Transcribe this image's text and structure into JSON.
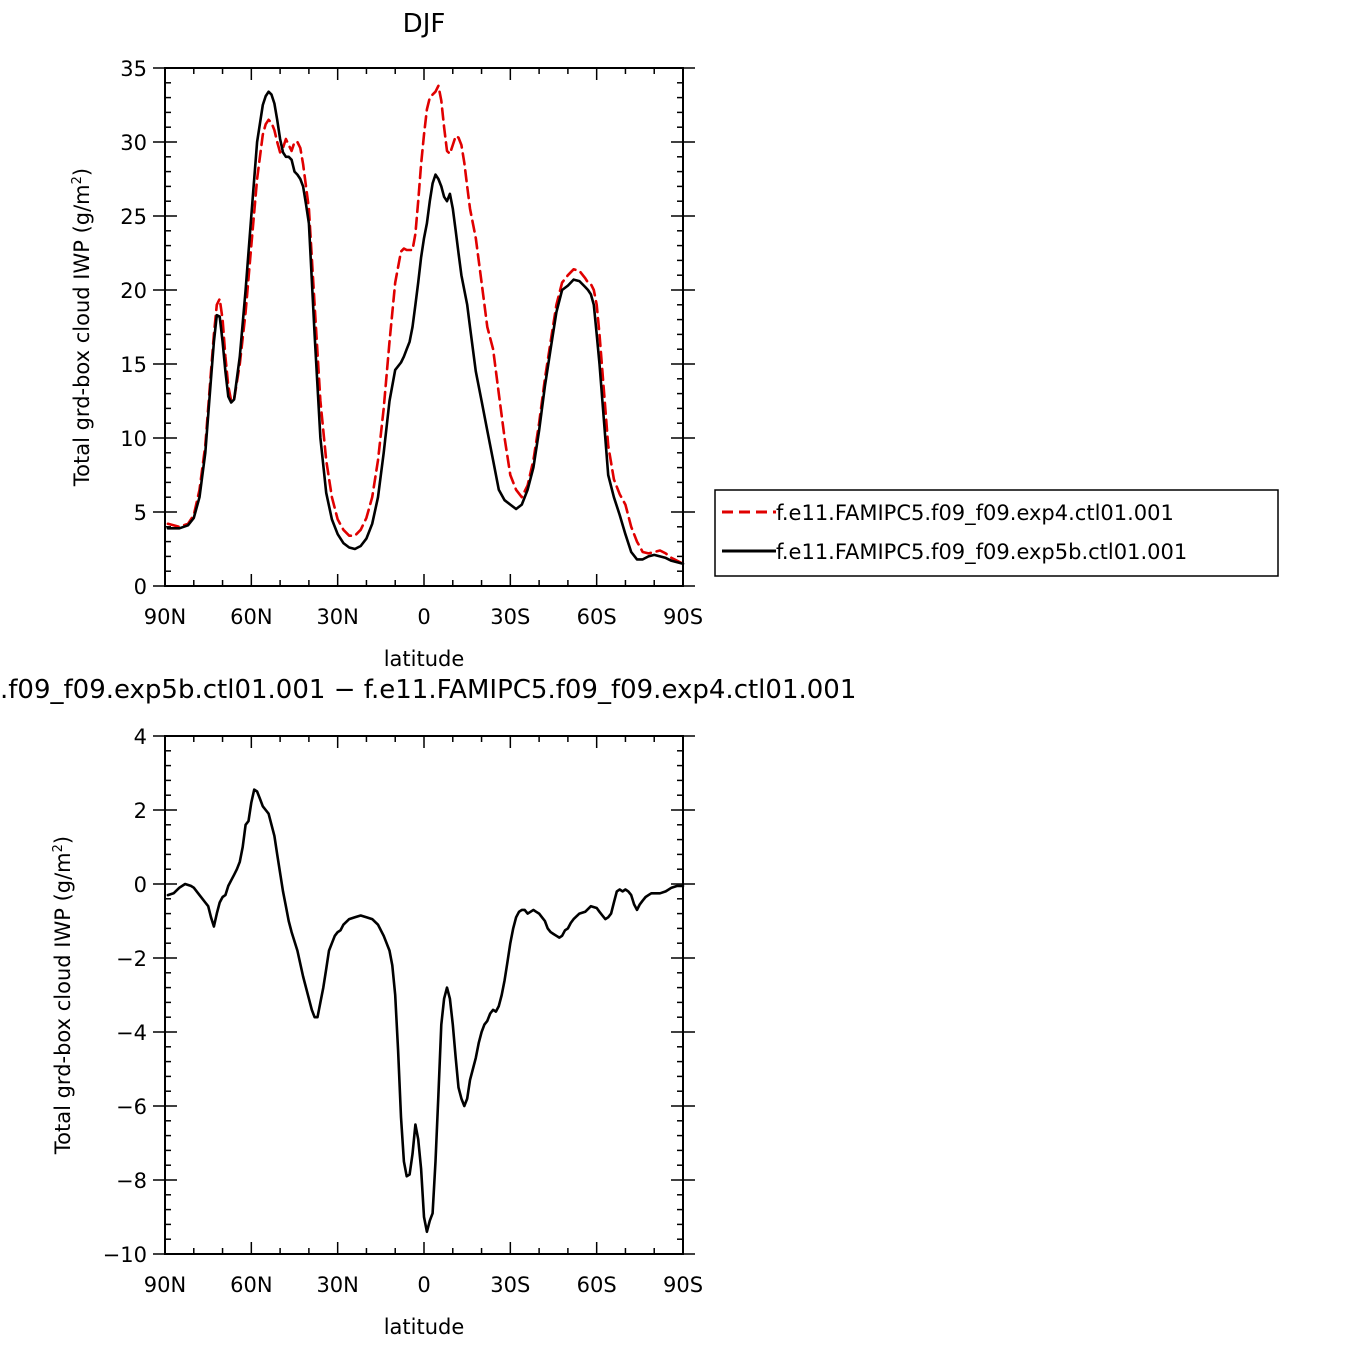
{
  "chart_data": [
    {
      "type": "line",
      "title": "DJF",
      "xlabel": "latitude",
      "ylabel_main": "Total grd-box cloud IWP (g/m",
      "ylabel_sup": "2",
      "ylabel_close": ")",
      "xlim": [
        90,
        -90
      ],
      "ylim": [
        0,
        35
      ],
      "xticks": [
        {
          "value": 90,
          "label": "90N"
        },
        {
          "value": 60,
          "label": "60N"
        },
        {
          "value": 30,
          "label": "30N"
        },
        {
          "value": 0,
          "label": "0"
        },
        {
          "value": -30,
          "label": "30S"
        },
        {
          "value": -60,
          "label": "60S"
        },
        {
          "value": -90,
          "label": "90S"
        }
      ],
      "yticks": [
        {
          "value": 0,
          "label": "0"
        },
        {
          "value": 5,
          "label": "5"
        },
        {
          "value": 10,
          "label": "10"
        },
        {
          "value": 15,
          "label": "15"
        },
        {
          "value": 20,
          "label": "20"
        },
        {
          "value": 25,
          "label": "25"
        },
        {
          "value": 30,
          "label": "30"
        },
        {
          "value": 35,
          "label": "35"
        }
      ],
      "legend_position": "right",
      "series": [
        {
          "name": "f.e11.FAMIPC5.f09_f09.exp4.ctl01.001",
          "color": "#e00000",
          "dash": true,
          "x": [
            89,
            85,
            82,
            80,
            78,
            76,
            74,
            73,
            72,
            71,
            70,
            69,
            68,
            67,
            66,
            64,
            62,
            60,
            58,
            56,
            55,
            54,
            53,
            52,
            51,
            50,
            49,
            48,
            47,
            46,
            45,
            44,
            43,
            42,
            41,
            40,
            38,
            36,
            34,
            32,
            30,
            28,
            26,
            24,
            22,
            20,
            18,
            16,
            14,
            12,
            10,
            8,
            7,
            6,
            5,
            4,
            3,
            2,
            1,
            0,
            -1,
            -2,
            -3,
            -4,
            -5,
            -6,
            -7,
            -8,
            -9,
            -10,
            -11,
            -12,
            -13,
            -14,
            -15,
            -16,
            -18,
            -20,
            -22,
            -24,
            -26,
            -28,
            -30,
            -32,
            -34,
            -36,
            -38,
            -40,
            -42,
            -44,
            -46,
            -48,
            -50,
            -52,
            -54,
            -56,
            -57,
            -58,
            -59,
            -60,
            -61,
            -62,
            -63,
            -64,
            -66,
            -68,
            -70,
            -72,
            -74,
            -76,
            -78,
            -80,
            -82,
            -84,
            -86,
            -88,
            -90
          ],
          "y": [
            4.2,
            4.0,
            4.2,
            4.8,
            6.5,
            9.5,
            14.5,
            17.0,
            19.0,
            19.4,
            18.0,
            15.5,
            13.5,
            12.5,
            12.6,
            15.0,
            18.5,
            23.0,
            27.5,
            30.5,
            31.2,
            31.5,
            31.3,
            30.8,
            30.0,
            29.3,
            29.6,
            30.2,
            29.8,
            29.4,
            30.0,
            30.0,
            29.6,
            28.5,
            27.0,
            25.5,
            19.0,
            12.5,
            8.5,
            6.0,
            4.5,
            3.8,
            3.4,
            3.4,
            3.8,
            4.6,
            6.0,
            8.5,
            12.0,
            16.5,
            20.5,
            22.6,
            22.8,
            22.7,
            22.7,
            22.7,
            23.8,
            26.0,
            28.5,
            30.5,
            32.2,
            33.0,
            33.2,
            33.4,
            33.8,
            32.8,
            31.0,
            29.4,
            29.2,
            29.8,
            30.4,
            30.3,
            29.8,
            28.6,
            27.0,
            25.5,
            23.5,
            20.5,
            17.5,
            16.0,
            13.0,
            10.0,
            7.5,
            6.5,
            6.0,
            6.8,
            8.5,
            11.0,
            14.0,
            16.5,
            19.0,
            20.5,
            21.0,
            21.4,
            21.3,
            20.8,
            20.5,
            20.4,
            20.0,
            19.0,
            17.0,
            14.5,
            12.0,
            9.5,
            7.2,
            6.2,
            5.5,
            4.0,
            3.0,
            2.3,
            2.2,
            2.3,
            2.4,
            2.2,
            1.9,
            1.7,
            1.5
          ]
        },
        {
          "name": "f.e11.FAMIPC5.f09_f09.exp5b.ctl01.001",
          "color": "#000000",
          "dash": false,
          "x": [
            89,
            85,
            82,
            80,
            78,
            76,
            74,
            73,
            72,
            71,
            70,
            69,
            68,
            67,
            66,
            64,
            62,
            60,
            58,
            56,
            55,
            54,
            53,
            52,
            51,
            50,
            49,
            48,
            47,
            46,
            45,
            44,
            43,
            42,
            41,
            40,
            38,
            36,
            34,
            32,
            30,
            28,
            26,
            24,
            22,
            20,
            18,
            16,
            14,
            12,
            10,
            8,
            7,
            6,
            5,
            4,
            3,
            2,
            1,
            0,
            -1,
            -2,
            -3,
            -4,
            -5,
            -6,
            -7,
            -8,
            -9,
            -10,
            -11,
            -12,
            -13,
            -14,
            -15,
            -16,
            -18,
            -20,
            -22,
            -24,
            -26,
            -28,
            -30,
            -32,
            -34,
            -36,
            -38,
            -40,
            -42,
            -44,
            -46,
            -48,
            -50,
            -52,
            -54,
            -56,
            -57,
            -58,
            -59,
            -60,
            -61,
            -62,
            -63,
            -64,
            -66,
            -68,
            -70,
            -72,
            -74,
            -76,
            -78,
            -80,
            -82,
            -84,
            -86,
            -88,
            -90
          ],
          "y": [
            3.9,
            3.9,
            4.1,
            4.6,
            6.0,
            9.0,
            14.0,
            16.5,
            18.3,
            18.2,
            16.5,
            14.5,
            12.8,
            12.4,
            12.6,
            15.5,
            20.0,
            25.0,
            30.0,
            32.5,
            33.1,
            33.4,
            33.2,
            32.6,
            31.5,
            30.2,
            29.3,
            29.0,
            29.0,
            28.8,
            28.0,
            27.8,
            27.5,
            27.0,
            25.8,
            24.5,
            17.0,
            10.0,
            6.3,
            4.5,
            3.5,
            2.9,
            2.6,
            2.5,
            2.7,
            3.2,
            4.2,
            6.0,
            9.0,
            12.5,
            14.6,
            15.1,
            15.5,
            16.0,
            16.5,
            17.5,
            19.0,
            20.5,
            22.2,
            23.5,
            24.5,
            26.0,
            27.2,
            27.8,
            27.5,
            27.0,
            26.3,
            26.0,
            26.5,
            25.5,
            24.0,
            22.5,
            21.0,
            20.0,
            19.0,
            17.5,
            14.5,
            12.5,
            10.5,
            8.5,
            6.5,
            5.8,
            5.5,
            5.2,
            5.5,
            6.5,
            8.0,
            10.5,
            13.5,
            16.0,
            18.5,
            20.0,
            20.3,
            20.7,
            20.6,
            20.2,
            20.0,
            19.7,
            19.0,
            17.0,
            15.0,
            12.5,
            10.0,
            7.5,
            6.0,
            4.8,
            3.5,
            2.3,
            1.8,
            1.8,
            2.0,
            2.1,
            2.0,
            1.9,
            1.7,
            1.6,
            1.5
          ]
        }
      ]
    },
    {
      "type": "line",
      "title": ".f09_f09.exp5b.ctl01.001  −  f.e11.FAMIPC5.f09_f09.exp4.ctl01.001",
      "xlabel": "latitude",
      "ylabel_main": "Total grd-box cloud IWP (g/m",
      "ylabel_sup": "2",
      "ylabel_close": ")",
      "xlim": [
        90,
        -90
      ],
      "ylim": [
        -10,
        4
      ],
      "xticks": [
        {
          "value": 90,
          "label": "90N"
        },
        {
          "value": 60,
          "label": "60N"
        },
        {
          "value": 30,
          "label": "30N"
        },
        {
          "value": 0,
          "label": "0"
        },
        {
          "value": -30,
          "label": "30S"
        },
        {
          "value": -60,
          "label": "60S"
        },
        {
          "value": -90,
          "label": "90S"
        }
      ],
      "yticks": [
        {
          "value": -10,
          "label": "−10"
        },
        {
          "value": -8,
          "label": "−8"
        },
        {
          "value": -6,
          "label": "−6"
        },
        {
          "value": -4,
          "label": "−4"
        },
        {
          "value": -2,
          "label": "−2"
        },
        {
          "value": 0,
          "label": "0"
        },
        {
          "value": 2,
          "label": "2"
        },
        {
          "value": 4,
          "label": "4"
        }
      ],
      "series": [
        {
          "color": "#000000",
          "dash": false,
          "x": [
            89,
            87,
            85,
            83,
            81,
            80,
            78,
            76,
            75,
            74,
            73,
            72,
            71,
            70,
            69,
            68,
            67,
            66,
            65,
            64,
            63,
            62,
            61,
            60,
            59,
            58,
            57,
            56,
            55,
            54,
            53,
            52,
            51,
            50,
            49,
            48,
            47,
            46,
            45,
            44,
            42,
            40,
            39,
            38,
            37,
            36,
            35,
            34,
            33,
            32,
            31,
            30,
            29,
            28,
            26,
            24,
            22,
            20,
            18,
            16,
            14,
            13,
            12,
            11,
            10,
            9,
            8,
            7,
            6,
            5,
            4,
            3,
            2,
            1,
            0,
            -1,
            -2,
            -3,
            -4,
            -5,
            -6,
            -7,
            -8,
            -9,
            -10,
            -11,
            -12,
            -13,
            -14,
            -15,
            -16,
            -17,
            -18,
            -19,
            -20,
            -21,
            -22,
            -23,
            -24,
            -25,
            -26,
            -27,
            -28,
            -29,
            -30,
            -31,
            -32,
            -33,
            -34,
            -35,
            -36,
            -37,
            -38,
            -39,
            -40,
            -41,
            -42,
            -43,
            -44,
            -45,
            -46,
            -47,
            -48,
            -49,
            -50,
            -51,
            -52,
            -54,
            -56,
            -58,
            -60,
            -61,
            -62,
            -63,
            -64,
            -65,
            -66,
            -67,
            -68,
            -69,
            -70,
            -71,
            -72,
            -73,
            -74,
            -75,
            -76,
            -77,
            -78,
            -79,
            -80,
            -81,
            -82,
            -84,
            -86,
            -88,
            -90
          ],
          "y": [
            -0.3,
            -0.25,
            -0.1,
            0.0,
            -0.05,
            -0.1,
            -0.3,
            -0.5,
            -0.6,
            -0.9,
            -1.15,
            -0.8,
            -0.5,
            -0.35,
            -0.3,
            -0.05,
            0.1,
            0.25,
            0.4,
            0.6,
            1.0,
            1.6,
            1.7,
            2.2,
            2.55,
            2.5,
            2.3,
            2.1,
            2.0,
            1.9,
            1.6,
            1.3,
            0.8,
            0.3,
            -0.2,
            -0.6,
            -1.0,
            -1.3,
            -1.55,
            -1.8,
            -2.5,
            -3.1,
            -3.4,
            -3.6,
            -3.6,
            -3.2,
            -2.8,
            -2.3,
            -1.8,
            -1.6,
            -1.4,
            -1.3,
            -1.25,
            -1.1,
            -0.95,
            -0.9,
            -0.85,
            -0.9,
            -0.95,
            -1.1,
            -1.4,
            -1.6,
            -1.8,
            -2.2,
            -3.0,
            -4.5,
            -6.3,
            -7.5,
            -7.9,
            -7.85,
            -7.3,
            -6.5,
            -6.9,
            -7.7,
            -9.0,
            -9.4,
            -9.1,
            -8.9,
            -7.5,
            -5.7,
            -3.8,
            -3.1,
            -2.8,
            -3.1,
            -3.8,
            -4.7,
            -5.5,
            -5.8,
            -6.0,
            -5.8,
            -5.3,
            -5.0,
            -4.7,
            -4.3,
            -4.0,
            -3.8,
            -3.7,
            -3.5,
            -3.4,
            -3.45,
            -3.3,
            -3.0,
            -2.6,
            -2.1,
            -1.6,
            -1.2,
            -0.9,
            -0.75,
            -0.7,
            -0.7,
            -0.8,
            -0.75,
            -0.7,
            -0.75,
            -0.8,
            -0.9,
            -1.0,
            -1.2,
            -1.3,
            -1.35,
            -1.4,
            -1.45,
            -1.4,
            -1.25,
            -1.2,
            -1.05,
            -0.95,
            -0.8,
            -0.75,
            -0.6,
            -0.65,
            -0.75,
            -0.85,
            -0.95,
            -0.9,
            -0.8,
            -0.5,
            -0.2,
            -0.15,
            -0.2,
            -0.15,
            -0.2,
            -0.3,
            -0.55,
            -0.7,
            -0.55,
            -0.45,
            -0.35,
            -0.3,
            -0.25,
            -0.25,
            -0.25,
            -0.25,
            -0.2,
            -0.1,
            -0.05,
            -0.05
          ]
        }
      ]
    }
  ]
}
